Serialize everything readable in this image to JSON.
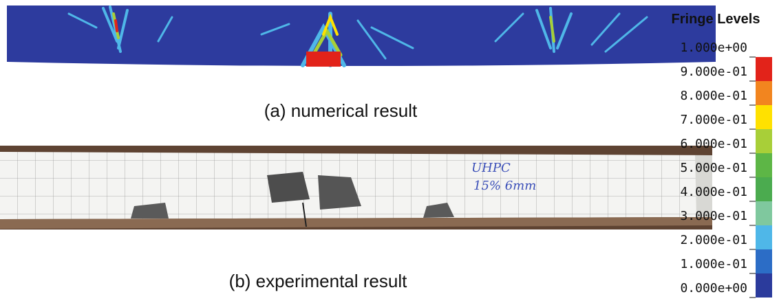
{
  "panels": [
    {
      "caption": "(a) numerical result"
    },
    {
      "caption": "(b) experimental result",
      "annotation": [
        "UHPC",
        "15% 6mm"
      ]
    }
  ],
  "colorbar": {
    "title": "Fringe Levels",
    "levels": [
      {
        "value": 1.0,
        "label": "1.000e+00"
      },
      {
        "value": 0.9,
        "label": "9.000e-01"
      },
      {
        "value": 0.8,
        "label": "8.000e-01"
      },
      {
        "value": 0.7,
        "label": "7.000e-01"
      },
      {
        "value": 0.6,
        "label": "6.000e-01"
      },
      {
        "value": 0.5,
        "label": "5.000e-01"
      },
      {
        "value": 0.4,
        "label": "4.000e-01"
      },
      {
        "value": 0.3,
        "label": "3.000e-01"
      },
      {
        "value": 0.2,
        "label": "2.000e-01"
      },
      {
        "value": 0.1,
        "label": "1.000e-01"
      },
      {
        "value": 0.0,
        "label": "0.000e+00"
      }
    ],
    "colors": [
      "#e2231a",
      "#f2851f",
      "#ffe100",
      "#a8cf38",
      "#5db646",
      "#4bab4f",
      "#7fc89e",
      "#4fb7e8",
      "#2c6dc6",
      "#2b3b9c"
    ]
  }
}
